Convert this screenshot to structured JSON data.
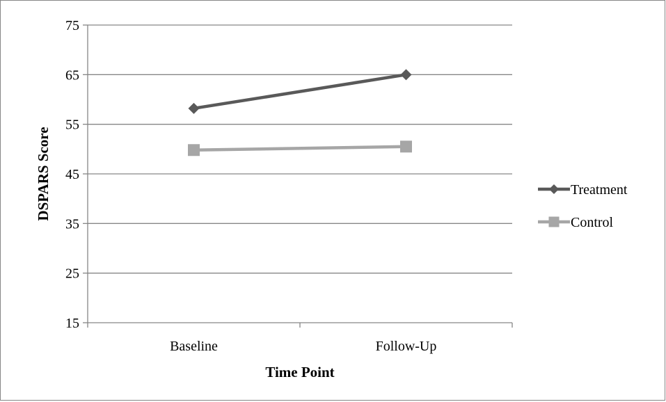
{
  "chart_data": {
    "type": "line",
    "title": "",
    "xlabel": "Time Point",
    "ylabel": "DSPARS Score",
    "categories": [
      "Baseline",
      "Follow-Up"
    ],
    "ylim": [
      15,
      75
    ],
    "yticks": [
      15,
      25,
      35,
      45,
      55,
      65,
      75
    ],
    "grid": true,
    "legend_position": "right",
    "series": [
      {
        "name": "Treatment",
        "values": [
          58.2,
          65.0
        ],
        "color": "#595959",
        "marker": "diamond"
      },
      {
        "name": "Control",
        "values": [
          49.8,
          50.5
        ],
        "color": "#a6a6a6",
        "marker": "square"
      }
    ]
  }
}
